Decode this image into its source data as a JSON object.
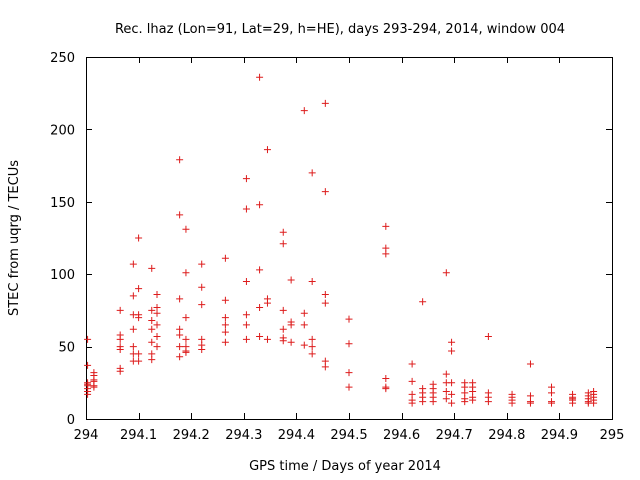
{
  "chart_data": {
    "type": "scatter",
    "title": "Rec. lhaz (Lon=91, Lat=29, h=HE), days 293-294, 2014, window 004",
    "xlabel": "GPS time / Days of year 2014",
    "ylabel": "STEC from uqrg / TECUs",
    "xlim": [
      294,
      295
    ],
    "ylim": [
      0,
      250
    ],
    "xticks": [
      "294",
      "294.1",
      "294.2",
      "294.3",
      "294.4",
      "294.5",
      "294.6",
      "294.7",
      "294.8",
      "294.9",
      "295"
    ],
    "yticks": [
      "0",
      "50",
      "100",
      "150",
      "200",
      "250"
    ],
    "grid": false,
    "legend": "none",
    "marker": "plus",
    "color": "#dd1c1c",
    "x": [
      294.003,
      294.003,
      294.003,
      294.003,
      294.003,
      294.003,
      294.003,
      294.003,
      294.015,
      294.015,
      294.015,
      294.015,
      294.015,
      294.015,
      294.065,
      294.065,
      294.065,
      294.065,
      294.065,
      294.065,
      294.065,
      294.09,
      294.09,
      294.09,
      294.09,
      294.09,
      294.09,
      294.09,
      294.1,
      294.1,
      294.1,
      294.1,
      294.1,
      294.1,
      294.125,
      294.125,
      294.125,
      294.125,
      294.125,
      294.125,
      294.125,
      294.135,
      294.135,
      294.135,
      294.135,
      294.135,
      294.135,
      294.178,
      294.178,
      294.178,
      294.178,
      294.178,
      294.178,
      294.178,
      294.19,
      294.19,
      294.19,
      294.19,
      294.19,
      294.19,
      294.19,
      294.22,
      294.22,
      294.22,
      294.22,
      294.22,
      294.22,
      294.265,
      294.265,
      294.265,
      294.265,
      294.265,
      294.265,
      294.305,
      294.305,
      294.305,
      294.305,
      294.305,
      294.305,
      294.33,
      294.33,
      294.33,
      294.33,
      294.33,
      294.345,
      294.345,
      294.345,
      294.345,
      294.375,
      294.375,
      294.375,
      294.375,
      294.375,
      294.375,
      294.39,
      294.39,
      294.39,
      294.39,
      294.415,
      294.415,
      294.415,
      294.415,
      294.43,
      294.43,
      294.43,
      294.43,
      294.43,
      294.455,
      294.455,
      294.455,
      294.455,
      294.455,
      294.455,
      294.5,
      294.5,
      294.5,
      294.5,
      294.57,
      294.57,
      294.57,
      294.57,
      294.57,
      294.57,
      294.62,
      294.62,
      294.62,
      294.62,
      294.62,
      294.64,
      294.64,
      294.64,
      294.64,
      294.64,
      294.66,
      294.66,
      294.66,
      294.66,
      294.66,
      294.685,
      294.685,
      294.685,
      294.685,
      294.685,
      294.695,
      294.695,
      294.695,
      294.695,
      294.695,
      294.72,
      294.72,
      294.72,
      294.72,
      294.72,
      294.735,
      294.735,
      294.735,
      294.735,
      294.735,
      294.765,
      294.765,
      294.765,
      294.765,
      294.81,
      294.81,
      294.81,
      294.81,
      294.845,
      294.845,
      294.845,
      294.845,
      294.885,
      294.885,
      294.885,
      294.885,
      294.925,
      294.925,
      294.925,
      294.925,
      294.925,
      294.955,
      294.955,
      294.955,
      294.955,
      294.955,
      294.965,
      294.965,
      294.965,
      294.965,
      294.965
    ],
    "y": [
      55,
      37,
      25,
      24,
      23,
      21,
      19,
      17,
      32,
      30,
      27,
      26,
      23,
      22,
      75,
      58,
      55,
      50,
      48,
      35,
      33,
      107,
      85,
      72,
      62,
      50,
      45,
      40,
      125,
      90,
      72,
      70,
      45,
      40,
      104,
      75,
      68,
      62,
      53,
      45,
      41,
      86,
      77,
      73,
      65,
      57,
      50,
      179,
      141,
      83,
      62,
      58,
      50,
      43,
      131,
      101,
      70,
      55,
      50,
      47,
      46,
      107,
      91,
      79,
      55,
      51,
      48,
      111,
      82,
      70,
      65,
      60,
      53,
      166,
      145,
      95,
      72,
      65,
      55,
      236,
      148,
      103,
      77,
      57,
      186,
      83,
      80,
      55,
      129,
      121,
      75,
      62,
      56,
      54,
      96,
      67,
      65,
      53,
      213,
      73,
      65,
      51,
      170,
      95,
      55,
      50,
      45,
      218,
      157,
      86,
      80,
      40,
      36,
      69,
      52,
      32,
      22,
      133,
      118,
      114,
      28,
      22,
      21,
      38,
      26,
      17,
      13,
      11,
      81,
      21,
      18,
      15,
      12,
      24,
      21,
      18,
      15,
      12,
      101,
      31,
      25,
      19,
      14,
      53,
      47,
      25,
      17,
      11,
      25,
      22,
      18,
      14,
      12,
      25,
      22,
      19,
      15,
      13,
      57,
      18,
      15,
      12,
      17,
      15,
      13,
      11,
      38,
      16,
      12,
      11,
      22,
      18,
      12,
      11,
      17,
      15,
      14,
      13,
      11,
      18,
      16,
      14,
      12,
      11,
      19,
      17,
      15,
      13,
      11
    ]
  }
}
